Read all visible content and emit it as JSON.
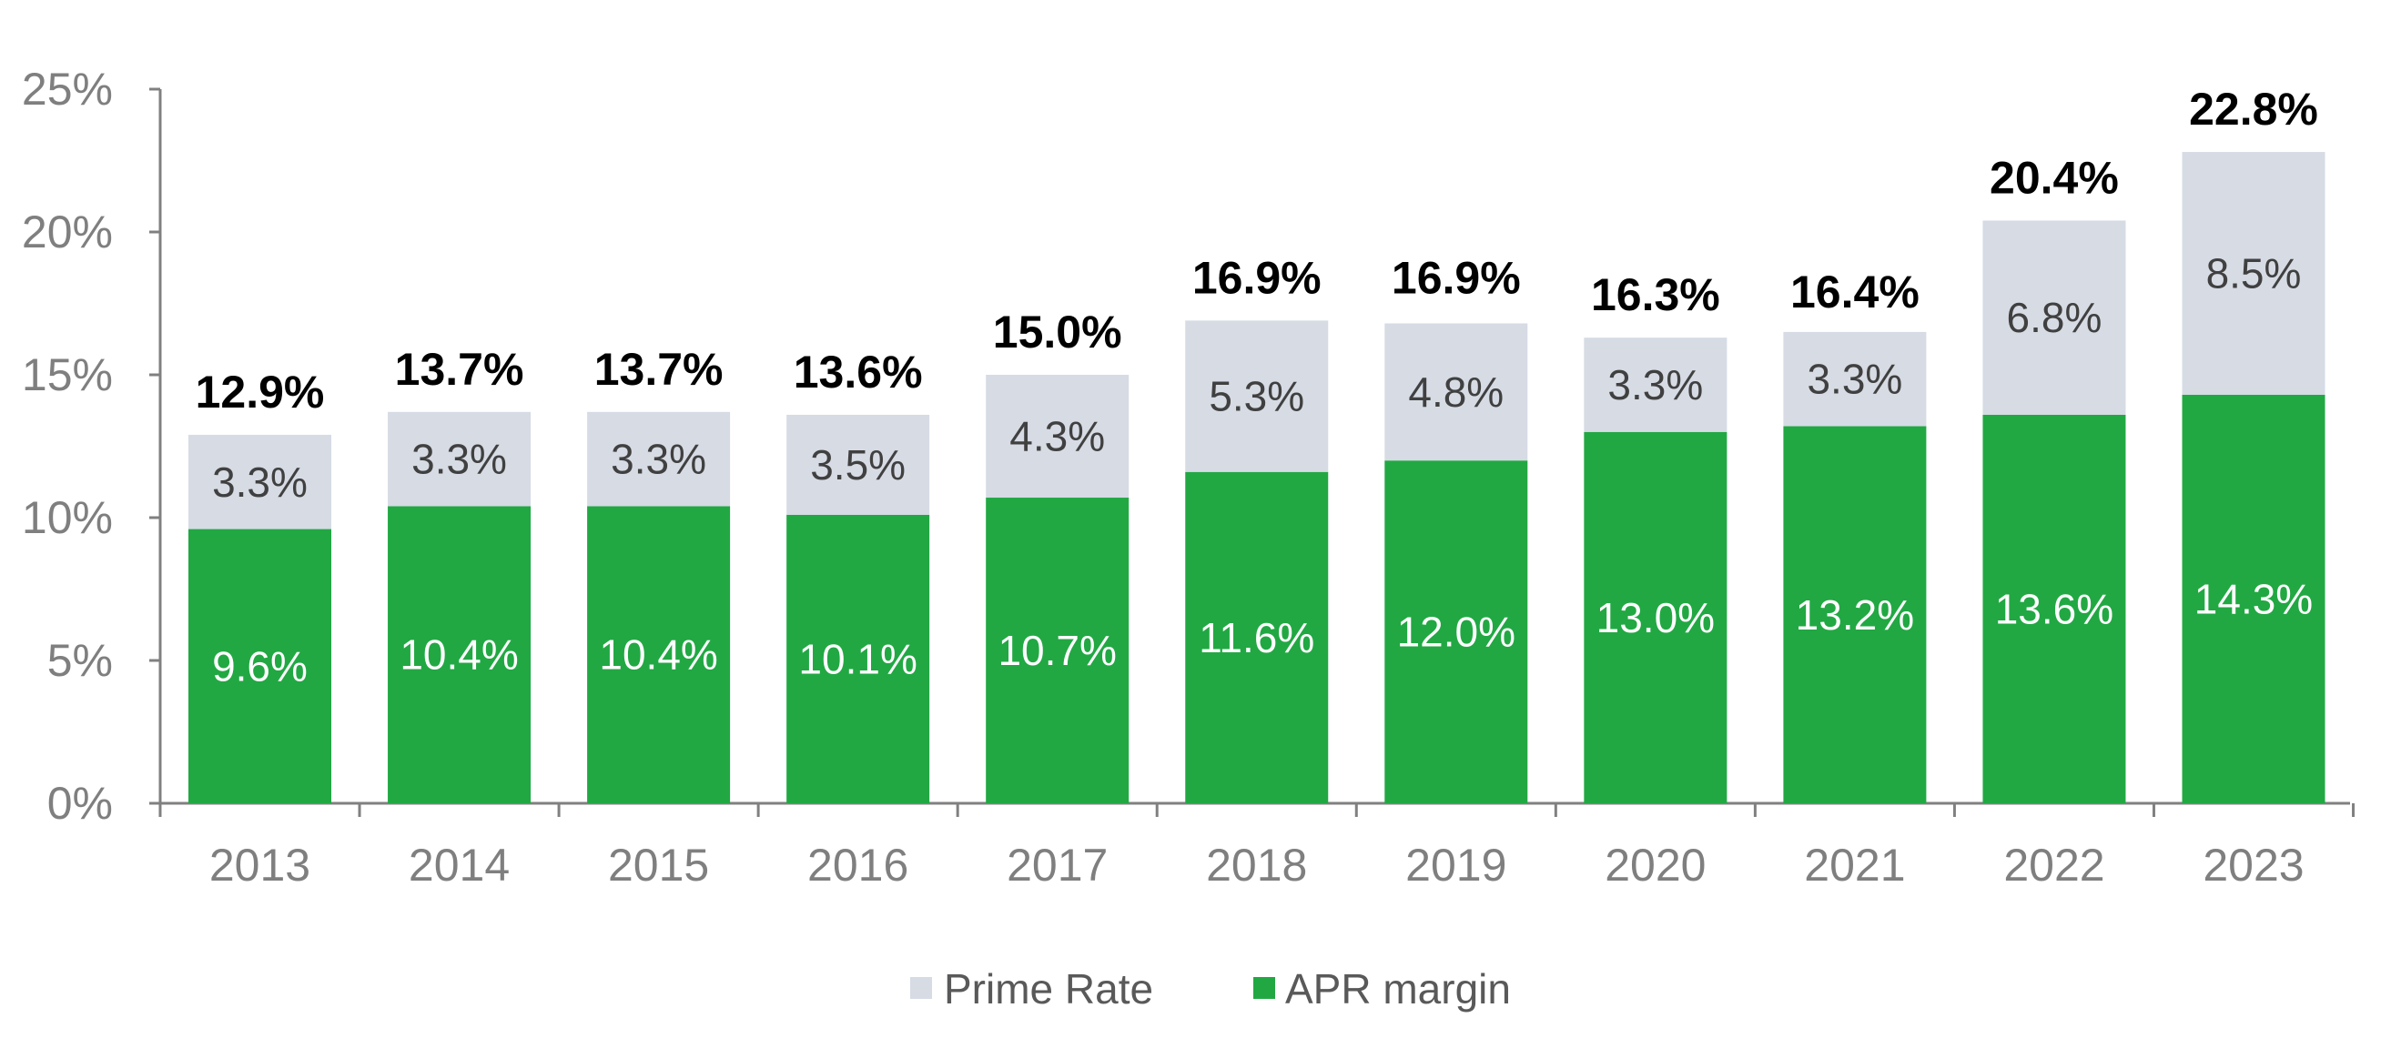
{
  "chart_data": {
    "type": "bar",
    "stacked": true,
    "categories": [
      "2013",
      "2014",
      "2015",
      "2016",
      "2017",
      "2018",
      "2019",
      "2020",
      "2021",
      "2022",
      "2023"
    ],
    "series": [
      {
        "name": "APR margin",
        "color": "#21a843",
        "values": [
          9.6,
          10.4,
          10.4,
          10.1,
          10.7,
          11.6,
          12.0,
          13.0,
          13.2,
          13.6,
          14.3
        ],
        "labels": [
          "9.6%",
          "10.4%",
          "10.4%",
          "10.1%",
          "10.7%",
          "11.6%",
          "12.0%",
          "13.0%",
          "13.2%",
          "13.6%",
          "14.3%"
        ]
      },
      {
        "name": "Prime Rate",
        "color": "#d6dbe4",
        "values": [
          3.3,
          3.3,
          3.3,
          3.5,
          4.3,
          5.3,
          4.8,
          3.3,
          3.3,
          6.8,
          8.5
        ],
        "labels": [
          "3.3%",
          "3.3%",
          "3.3%",
          "3.5%",
          "4.3%",
          "5.3%",
          "4.8%",
          "3.3%",
          "3.3%",
          "6.8%",
          "8.5%"
        ]
      }
    ],
    "totals": [
      12.9,
      13.7,
      13.7,
      13.6,
      15.0,
      16.9,
      16.9,
      16.3,
      16.4,
      20.4,
      22.8
    ],
    "total_labels": [
      "12.9%",
      "13.7%",
      "13.7%",
      "13.6%",
      "15.0%",
      "16.9%",
      "16.9%",
      "16.3%",
      "16.4%",
      "20.4%",
      "22.8%"
    ],
    "y_ticks": [
      "0%",
      "5%",
      "10%",
      "15%",
      "20%",
      "25%"
    ],
    "ylim": [
      0,
      25
    ],
    "title": "",
    "xlabel": "",
    "ylabel": "",
    "grid": false,
    "legend": {
      "placement": "bottom-center",
      "order": [
        "Prime Rate",
        "APR margin"
      ]
    }
  }
}
